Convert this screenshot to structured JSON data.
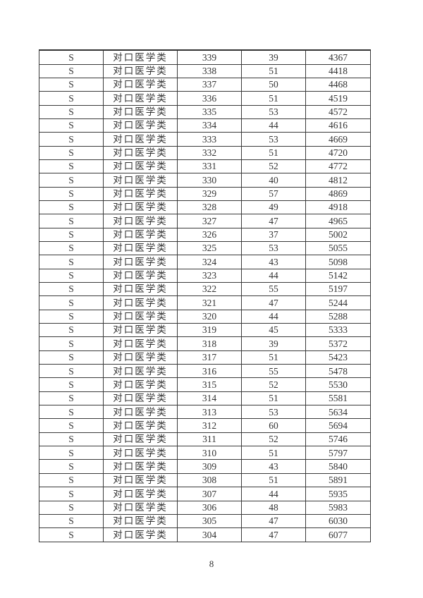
{
  "page": {
    "number": "8"
  },
  "table": {
    "rows": [
      [
        "S",
        "对口医学类",
        "339",
        "39",
        "4367"
      ],
      [
        "S",
        "对口医学类",
        "338",
        "51",
        "4418"
      ],
      [
        "S",
        "对口医学类",
        "337",
        "50",
        "4468"
      ],
      [
        "S",
        "对口医学类",
        "336",
        "51",
        "4519"
      ],
      [
        "S",
        "对口医学类",
        "335",
        "53",
        "4572"
      ],
      [
        "S",
        "对口医学类",
        "334",
        "44",
        "4616"
      ],
      [
        "S",
        "对口医学类",
        "333",
        "53",
        "4669"
      ],
      [
        "S",
        "对口医学类",
        "332",
        "51",
        "4720"
      ],
      [
        "S",
        "对口医学类",
        "331",
        "52",
        "4772"
      ],
      [
        "S",
        "对口医学类",
        "330",
        "40",
        "4812"
      ],
      [
        "S",
        "对口医学类",
        "329",
        "57",
        "4869"
      ],
      [
        "S",
        "对口医学类",
        "328",
        "49",
        "4918"
      ],
      [
        "S",
        "对口医学类",
        "327",
        "47",
        "4965"
      ],
      [
        "S",
        "对口医学类",
        "326",
        "37",
        "5002"
      ],
      [
        "S",
        "对口医学类",
        "325",
        "53",
        "5055"
      ],
      [
        "S",
        "对口医学类",
        "324",
        "43",
        "5098"
      ],
      [
        "S",
        "对口医学类",
        "323",
        "44",
        "5142"
      ],
      [
        "S",
        "对口医学类",
        "322",
        "55",
        "5197"
      ],
      [
        "S",
        "对口医学类",
        "321",
        "47",
        "5244"
      ],
      [
        "S",
        "对口医学类",
        "320",
        "44",
        "5288"
      ],
      [
        "S",
        "对口医学类",
        "319",
        "45",
        "5333"
      ],
      [
        "S",
        "对口医学类",
        "318",
        "39",
        "5372"
      ],
      [
        "S",
        "对口医学类",
        "317",
        "51",
        "5423"
      ],
      [
        "S",
        "对口医学类",
        "316",
        "55",
        "5478"
      ],
      [
        "S",
        "对口医学类",
        "315",
        "52",
        "5530"
      ],
      [
        "S",
        "对口医学类",
        "314",
        "51",
        "5581"
      ],
      [
        "S",
        "对口医学类",
        "313",
        "53",
        "5634"
      ],
      [
        "S",
        "对口医学类",
        "312",
        "60",
        "5694"
      ],
      [
        "S",
        "对口医学类",
        "311",
        "52",
        "5746"
      ],
      [
        "S",
        "对口医学类",
        "310",
        "51",
        "5797"
      ],
      [
        "S",
        "对口医学类",
        "309",
        "43",
        "5840"
      ],
      [
        "S",
        "对口医学类",
        "308",
        "51",
        "5891"
      ],
      [
        "S",
        "对口医学类",
        "307",
        "44",
        "5935"
      ],
      [
        "S",
        "对口医学类",
        "306",
        "48",
        "5983"
      ],
      [
        "S",
        "对口医学类",
        "305",
        "47",
        "6030"
      ],
      [
        "S",
        "对口医学类",
        "304",
        "47",
        "6077"
      ]
    ]
  }
}
